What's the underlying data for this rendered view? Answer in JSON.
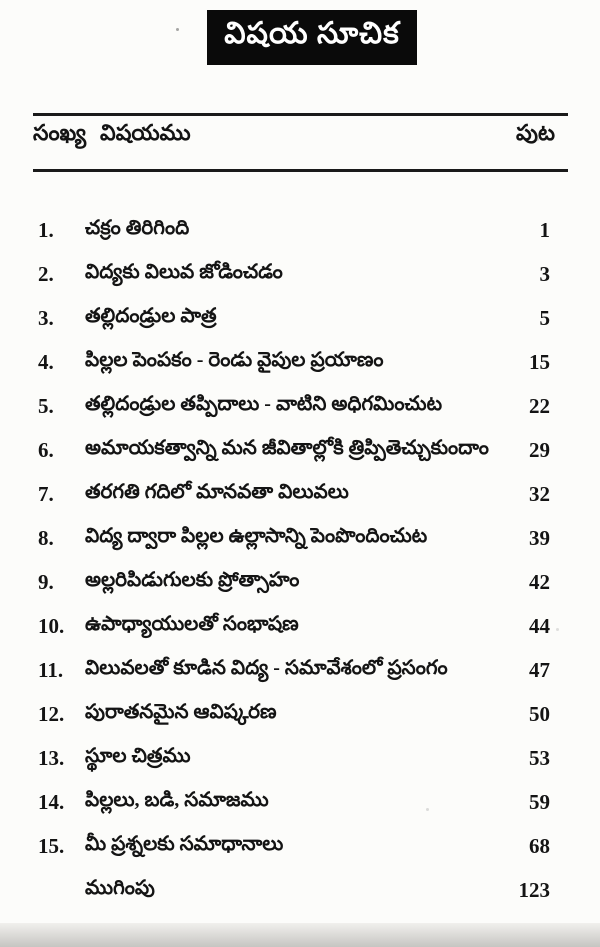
{
  "header": {
    "title": "విషయ సూచిక"
  },
  "table": {
    "columns": {
      "number": "సంఖ్య",
      "subject": "విషయము",
      "page": "పుట"
    }
  },
  "toc": {
    "entries": [
      {
        "num": "1.",
        "title": "చక్రం తిరిగింది",
        "page": "1"
      },
      {
        "num": "2.",
        "title": "విద్యకు విలువ జోడించడం",
        "page": "3"
      },
      {
        "num": "3.",
        "title": "తల్లిదండ్రుల పాత్ర",
        "page": "5"
      },
      {
        "num": "4.",
        "title": "పిల్లల పెంపకం - రెండు వైపుల ప్రయాణం",
        "page": "15"
      },
      {
        "num": "5.",
        "title": "తల్లిదండ్రుల తప్పిదాలు - వాటిని అధిగమించుట",
        "page": "22"
      },
      {
        "num": "6.",
        "title": "అమాయకత్వాన్ని మన జీవితాల్లోకి త్రిప్పితెచ్చుకుందాం",
        "page": "29"
      },
      {
        "num": "7.",
        "title": "తరగతి గదిలో మానవతా విలువలు",
        "page": "32"
      },
      {
        "num": "8.",
        "title": "విద్య ద్వారా పిల్లల ఉల్లాసాన్ని పెంపొందించుట",
        "page": "39"
      },
      {
        "num": "9.",
        "title": "అల్లరిపిడుగులకు ప్రోత్సాహం",
        "page": "42"
      },
      {
        "num": "10.",
        "title": "ఉపాధ్యాయులతో సంభాషణ",
        "page": "44"
      },
      {
        "num": "11.",
        "title": "విలువలతో కూడిన విద్య - సమావేశంలో ప్రసంగం",
        "page": "47"
      },
      {
        "num": "12.",
        "title": "పురాతనమైన ఆవిష్కరణ",
        "page": "50"
      },
      {
        "num": "13.",
        "title": "స్థూల చిత్రము",
        "page": "53"
      },
      {
        "num": "14.",
        "title": "పిల్లలు, బడి, సమాజము",
        "page": "59"
      },
      {
        "num": "15.",
        "title": "మీ ప్రశ్నలకు సమాధానాలు",
        "page": "68"
      },
      {
        "num": "",
        "title": "ముగింపు",
        "page": "123"
      }
    ]
  },
  "colors": {
    "ink": "#141414",
    "paper": "#fcfcfa",
    "title_bg": "#0a0a0a",
    "title_fg": "#ffffff",
    "rule": "#1a1a1a"
  }
}
